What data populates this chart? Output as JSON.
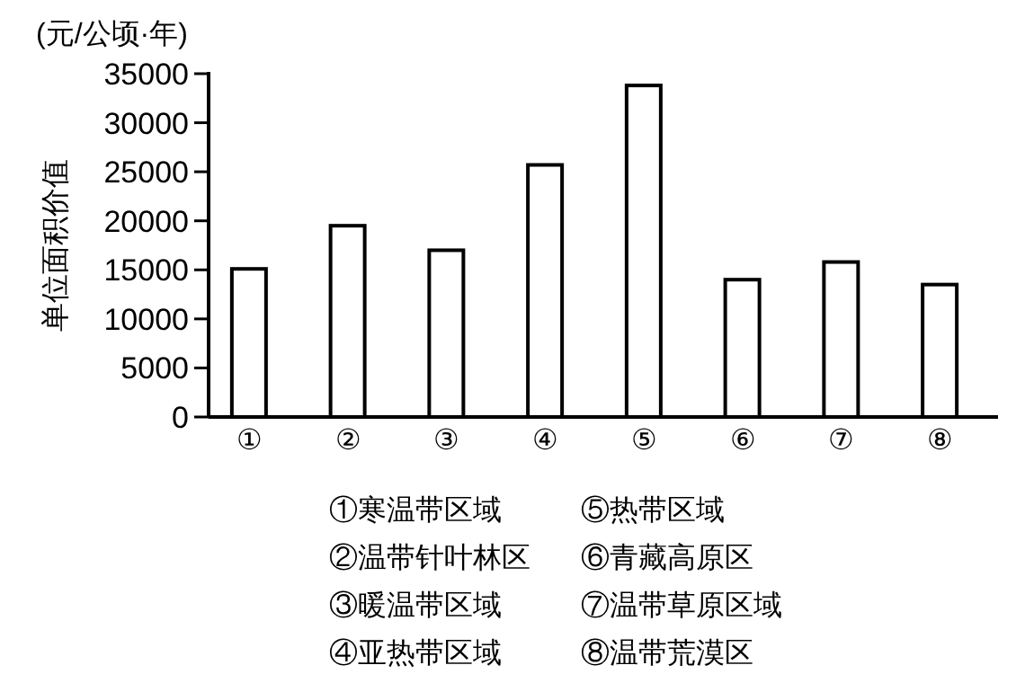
{
  "chart_data": {
    "type": "bar",
    "ylabel": "单位面积价值",
    "categories": [
      "①",
      "②",
      "③",
      "④",
      "⑤",
      "⑥",
      "⑦",
      "⑧"
    ],
    "values": [
      15100,
      19500,
      17000,
      25700,
      33800,
      14000,
      15800,
      13500
    ],
    "color": "#ffffff",
    "ylim": [
      0,
      35000
    ],
    "yticks": [
      0,
      5000,
      10000,
      15000,
      20000,
      25000,
      30000,
      35000
    ],
    "annotations": [
      "(元/公顷·年)",
      "①寒温带区域",
      "②温带针叶林区",
      "③暖温带区域",
      "④亚热带区域",
      "⑤热带区域",
      "⑥青藏高原区",
      "⑦温带草原区域",
      "⑧温带荒漠区"
    ]
  }
}
